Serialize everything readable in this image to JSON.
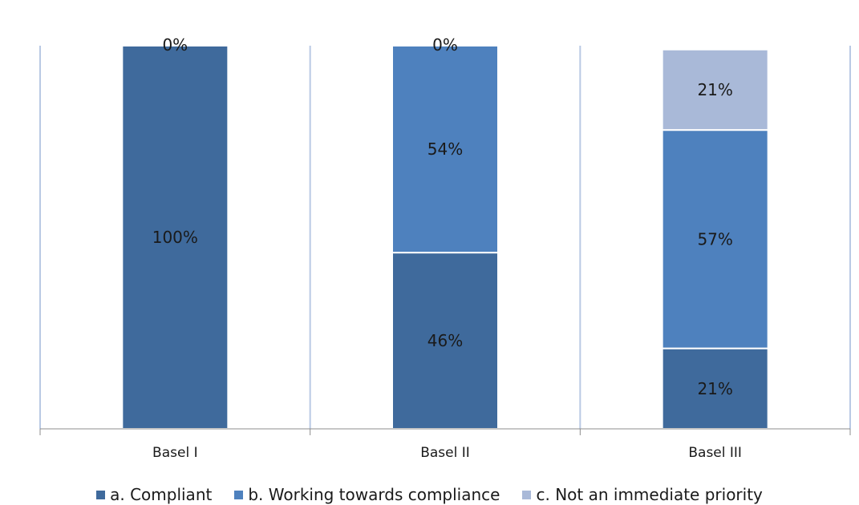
{
  "chart_data": {
    "type": "bar",
    "stacked": true,
    "percent": true,
    "categories": [
      "Basel I",
      "Basel II",
      "Basel III"
    ],
    "series": [
      {
        "name": "a. Compliant",
        "values": [
          100,
          46,
          21
        ],
        "color": "#3f6a9c",
        "labels": [
          "100%",
          "46%",
          "21%"
        ]
      },
      {
        "name": "b. Working towards compliance",
        "values": [
          0,
          54,
          57
        ],
        "color": "#4e81be",
        "labels": [
          "",
          "54%",
          "57%"
        ]
      },
      {
        "name": "c. Not an immediate priority",
        "values": [
          0,
          0,
          21
        ],
        "color": "#a9b9d8",
        "labels": [
          "0%",
          "0%",
          "21%"
        ]
      }
    ],
    "ylim": [
      0,
      100
    ],
    "grid": false,
    "legend_position": "bottom"
  },
  "colors": {
    "separator": "#b9c9e4",
    "axis": "#8c8c8c"
  }
}
